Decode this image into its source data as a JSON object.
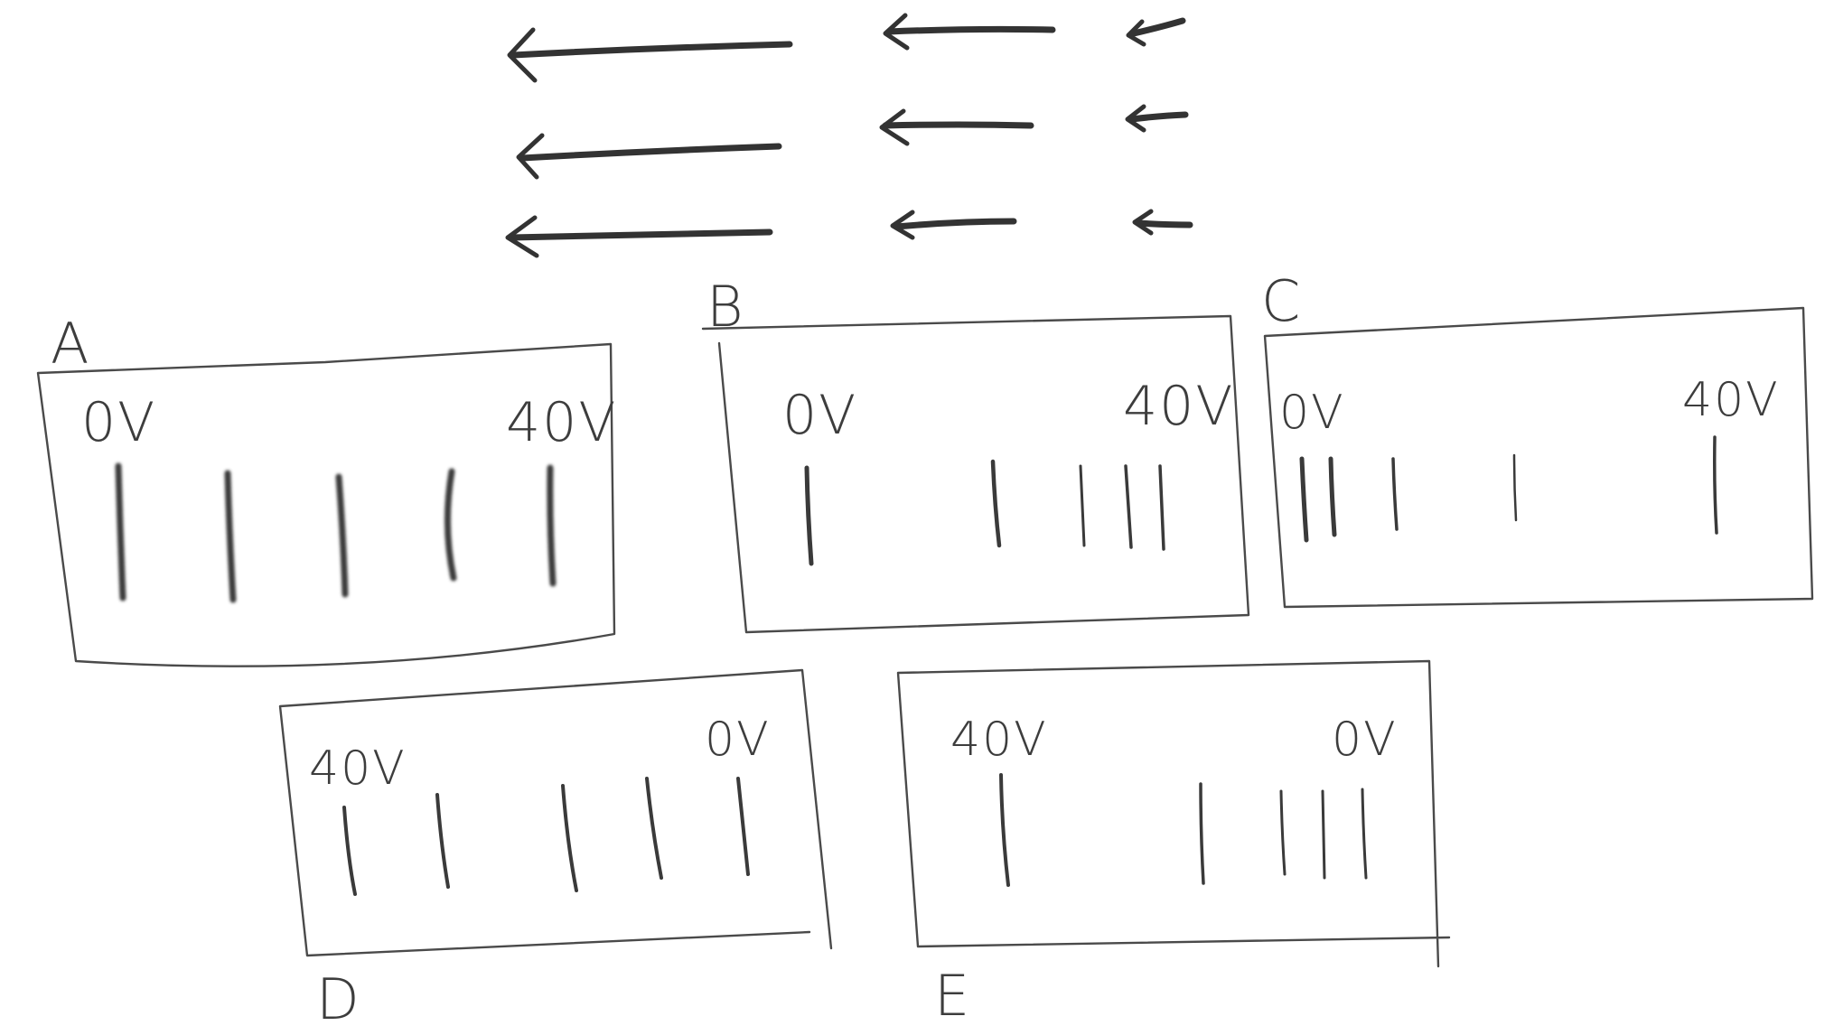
{
  "colors": {
    "pencil": "#3a3a3a",
    "paper": "#ffffff"
  },
  "field_arrows": {
    "direction": "left",
    "rows": 3,
    "length_classes": [
      "long",
      "medium",
      "short"
    ]
  },
  "panels": [
    {
      "letter": "A",
      "left_voltage": "0V",
      "right_voltage": "40V",
      "line_count": 5,
      "line_spacing": "even",
      "line_style": "smudged"
    },
    {
      "letter": "B",
      "left_voltage": "0V",
      "right_voltage": "40V",
      "line_count": 5,
      "line_spacing": "getting closer toward 40V",
      "line_style": "thin"
    },
    {
      "letter": "C",
      "left_voltage": "0V",
      "right_voltage": "40V",
      "line_count": 5,
      "line_spacing": "getting closer toward 0V",
      "line_style": "thin"
    },
    {
      "letter": "D",
      "left_voltage": "40V",
      "right_voltage": "0V",
      "line_count": 5,
      "line_spacing": "even",
      "line_style": "thin"
    },
    {
      "letter": "E",
      "left_voltage": "40V",
      "right_voltage": "0V",
      "line_count": 5,
      "line_spacing": "getting closer toward 0V",
      "line_style": "thin"
    }
  ]
}
